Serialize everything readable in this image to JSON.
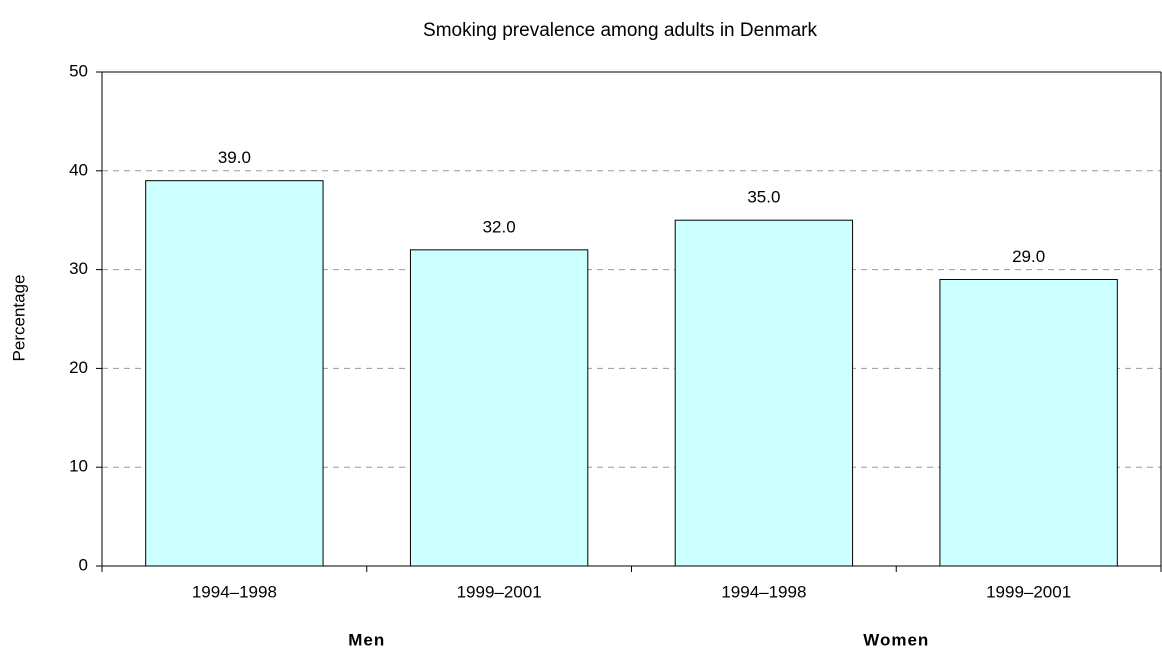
{
  "chart_data": {
    "type": "bar",
    "title": "Smoking prevalence among adults in Denmark",
    "y_label": "Percentage",
    "groups": [
      {
        "name": "Men",
        "categories": [
          "1994–1998",
          "1999–2001"
        ]
      },
      {
        "name": "Women",
        "categories": [
          "1994–1998",
          "1999–2001"
        ]
      }
    ],
    "values": [
      39,
      32,
      35,
      29
    ],
    "value_labels": [
      "39.0",
      "32.0",
      "35.0",
      "29.0"
    ],
    "color": "#ccffff",
    "ylim": [
      0,
      50
    ],
    "yticks": [
      0,
      10,
      20,
      30,
      40,
      50
    ],
    "grid": true
  }
}
